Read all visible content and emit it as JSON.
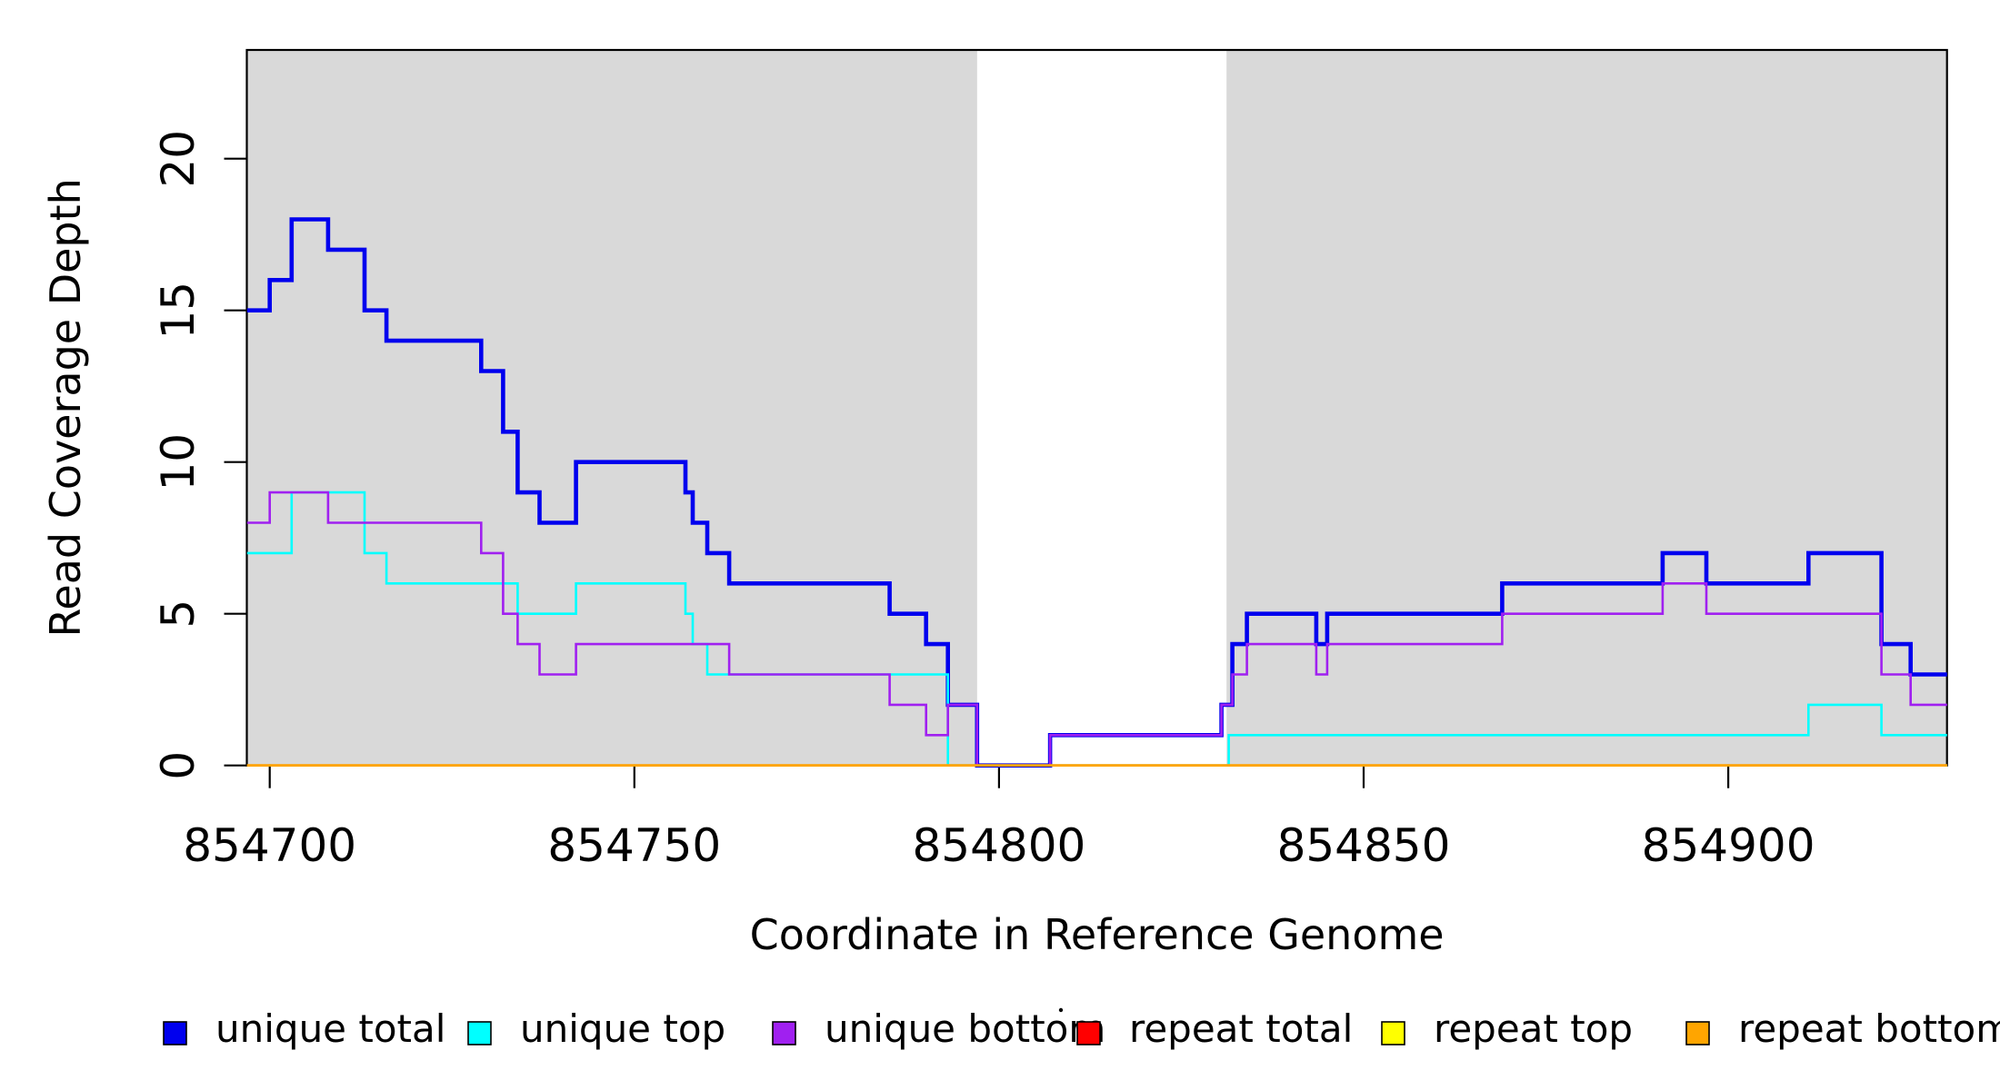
{
  "chart_data": {
    "type": "line",
    "subtype": "step-coverage-plot",
    "title": "",
    "xlabel": "Coordinate in Reference Genome",
    "ylabel": "Read Coverage Depth",
    "x_ticks": [
      854700,
      854750,
      854800,
      854850,
      854900
    ],
    "x_tick_labels": [
      "854700",
      "854750",
      "854800",
      "854850",
      "854900"
    ],
    "y_ticks": [
      0,
      5,
      10,
      15,
      20
    ],
    "y_tick_labels": [
      "0",
      "5",
      "10",
      "15",
      "20"
    ],
    "xlim": [
      854696.9,
      854930
    ],
    "ylim": [
      0,
      23.6
    ],
    "grid": false,
    "legend_position": "bottom",
    "plot_background": "#ffffff",
    "highlight_band_color": "#D9D9D9",
    "highlight_bands": [
      {
        "x0": 854696.9,
        "x1": 854797,
        "note": "left gray region"
      },
      {
        "x0": 854831.2,
        "x1": 854930,
        "note": "right gray region"
      }
    ],
    "white_gap": {
      "x0": 854797,
      "x1": 854831.2
    },
    "series": [
      {
        "name": "unique total",
        "color": "#0000EE",
        "line_width": 4.6,
        "steps": [
          [
            854696.9,
            15
          ],
          [
            854700,
            16
          ],
          [
            854703,
            18
          ],
          [
            854708,
            17
          ],
          [
            854713,
            15
          ],
          [
            854716,
            14
          ],
          [
            854729,
            13
          ],
          [
            854732,
            11
          ],
          [
            854734,
            9
          ],
          [
            854737,
            8
          ],
          [
            854742,
            10
          ],
          [
            854757,
            9
          ],
          [
            854758,
            8
          ],
          [
            854760,
            7
          ],
          [
            854763,
            6
          ],
          [
            854785,
            5
          ],
          [
            854790,
            4
          ],
          [
            854793,
            2
          ],
          [
            854797,
            0
          ],
          [
            854807,
            1
          ],
          [
            854830.5,
            2
          ],
          [
            854832,
            4
          ],
          [
            854834,
            5
          ],
          [
            854843.5,
            4
          ],
          [
            854845,
            5
          ],
          [
            854869,
            6
          ],
          [
            854891,
            7
          ],
          [
            854897,
            6
          ],
          [
            854911,
            7
          ],
          [
            854921,
            4
          ],
          [
            854925,
            3
          ]
        ],
        "x_end": 854930
      },
      {
        "name": "unique top",
        "color": "#00FFFF",
        "line_width": 2.6,
        "steps": [
          [
            854696.9,
            7
          ],
          [
            854703,
            9
          ],
          [
            854713,
            7
          ],
          [
            854716,
            6
          ],
          [
            854734,
            5
          ],
          [
            854742,
            6
          ],
          [
            854757,
            5
          ],
          [
            854758,
            4
          ],
          [
            854760,
            3
          ],
          [
            854793,
            0
          ],
          [
            854831.5,
            1
          ],
          [
            854911,
            2
          ],
          [
            854921,
            1
          ]
        ],
        "x_end": 854930
      },
      {
        "name": "unique bottom",
        "color": "#A020F0",
        "line_width": 2.6,
        "steps": [
          [
            854696.9,
            8
          ],
          [
            854700,
            9
          ],
          [
            854708,
            8
          ],
          [
            854729,
            7
          ],
          [
            854732,
            5
          ],
          [
            854734,
            4
          ],
          [
            854737,
            3
          ],
          [
            854742,
            4
          ],
          [
            854763,
            3
          ],
          [
            854785,
            2
          ],
          [
            854790,
            1
          ],
          [
            854793,
            2
          ],
          [
            854797,
            0
          ],
          [
            854807,
            1
          ],
          [
            854830.5,
            2
          ],
          [
            854832,
            3
          ],
          [
            854834,
            4
          ],
          [
            854843.5,
            3
          ],
          [
            854845,
            4
          ],
          [
            854869,
            5
          ],
          [
            854891,
            6
          ],
          [
            854897,
            5
          ],
          [
            854921,
            3
          ],
          [
            854925,
            2
          ]
        ],
        "x_end": 854930
      },
      {
        "name": "repeat total",
        "color": "#FF0000",
        "line_width": 2.6,
        "steps": [
          [
            854696.9,
            0
          ]
        ],
        "x_end": 854930
      },
      {
        "name": "repeat top",
        "color": "#FFFF00",
        "line_width": 2.6,
        "steps": [
          [
            854696.9,
            0
          ]
        ],
        "x_end": 854930
      },
      {
        "name": "repeat bottom",
        "color": "#FFA500",
        "line_width": 2.6,
        "steps": [
          [
            854696.9,
            0
          ]
        ],
        "x_end": 854930
      }
    ],
    "legend": {
      "items": [
        {
          "label": "unique total",
          "swatch_color": "#0000EE"
        },
        {
          "label": "unique top",
          "swatch_color": "#00FFFF"
        },
        {
          "label": "unique bottom",
          "swatch_color": "#A020F0"
        },
        {
          "label": "repeat total",
          "swatch_color": "#FF0000"
        },
        {
          "label": "repeat top",
          "swatch_color": "#FFFF00"
        },
        {
          "label": "repeat bottom",
          "swatch_color": "#FFA500"
        }
      ]
    },
    "annotations": [
      {
        "type": "stray-dot",
        "note": "tiny dot artifact left of repeat-total swatch"
      }
    ]
  }
}
